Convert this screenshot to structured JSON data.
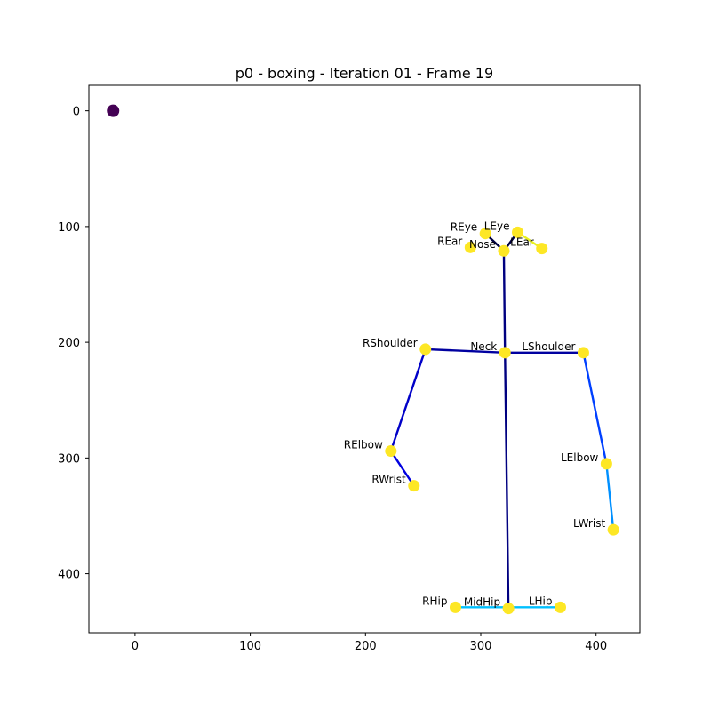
{
  "chart_data": {
    "type": "scatter",
    "title": "p0 - boxing - Iteration 01 - Frame 19",
    "xlabel": "",
    "ylabel": "",
    "xlim": [
      -40,
      438
    ],
    "ylim": [
      451,
      -22
    ],
    "y_inverted": true,
    "grid": false,
    "xticks": [
      0,
      100,
      200,
      300,
      400
    ],
    "yticks": [
      0,
      100,
      200,
      300,
      400
    ],
    "keypoints": [
      {
        "name": "Nose",
        "x": 320,
        "y": 121
      },
      {
        "name": "Neck",
        "x": 321,
        "y": 209
      },
      {
        "name": "RShoulder",
        "x": 252,
        "y": 206
      },
      {
        "name": "RElbow",
        "x": 222,
        "y": 294
      },
      {
        "name": "RWrist",
        "x": 242,
        "y": 324
      },
      {
        "name": "LShoulder",
        "x": 389,
        "y": 209
      },
      {
        "name": "LElbow",
        "x": 409,
        "y": 305
      },
      {
        "name": "LWrist",
        "x": 415,
        "y": 362
      },
      {
        "name": "MidHip",
        "x": 324,
        "y": 430
      },
      {
        "name": "RHip",
        "x": 278,
        "y": 429
      },
      {
        "name": "LHip",
        "x": 369,
        "y": 429
      },
      {
        "name": "REye",
        "x": 304,
        "y": 106
      },
      {
        "name": "LEye",
        "x": 332,
        "y": 105
      },
      {
        "name": "REar",
        "x": 291,
        "y": 118
      },
      {
        "name": "LEar",
        "x": 353,
        "y": 119
      }
    ],
    "origin_point": {
      "x": -19,
      "y": 0,
      "color": "#440154"
    },
    "point_color": "#fde725",
    "bones": [
      {
        "from": "Nose",
        "to": "Neck",
        "color": "#000080"
      },
      {
        "from": "Neck",
        "to": "MidHip",
        "color": "#000080"
      },
      {
        "from": "Neck",
        "to": "RShoulder",
        "color": "#0000a0"
      },
      {
        "from": "RShoulder",
        "to": "RElbow",
        "color": "#0000c8"
      },
      {
        "from": "RElbow",
        "to": "RWrist",
        "color": "#0000e0"
      },
      {
        "from": "Neck",
        "to": "LShoulder",
        "color": "#0000a0"
      },
      {
        "from": "LShoulder",
        "to": "LElbow",
        "color": "#0040ff"
      },
      {
        "from": "LElbow",
        "to": "LWrist",
        "color": "#0090ff"
      },
      {
        "from": "RHip",
        "to": "LHip",
        "color": "#00c0ff"
      },
      {
        "from": "Nose",
        "to": "REye",
        "color": "#000040"
      },
      {
        "from": "Nose",
        "to": "LEye",
        "color": "#000040"
      },
      {
        "from": "LEye",
        "to": "LEar",
        "color": "#e8f020"
      }
    ]
  }
}
